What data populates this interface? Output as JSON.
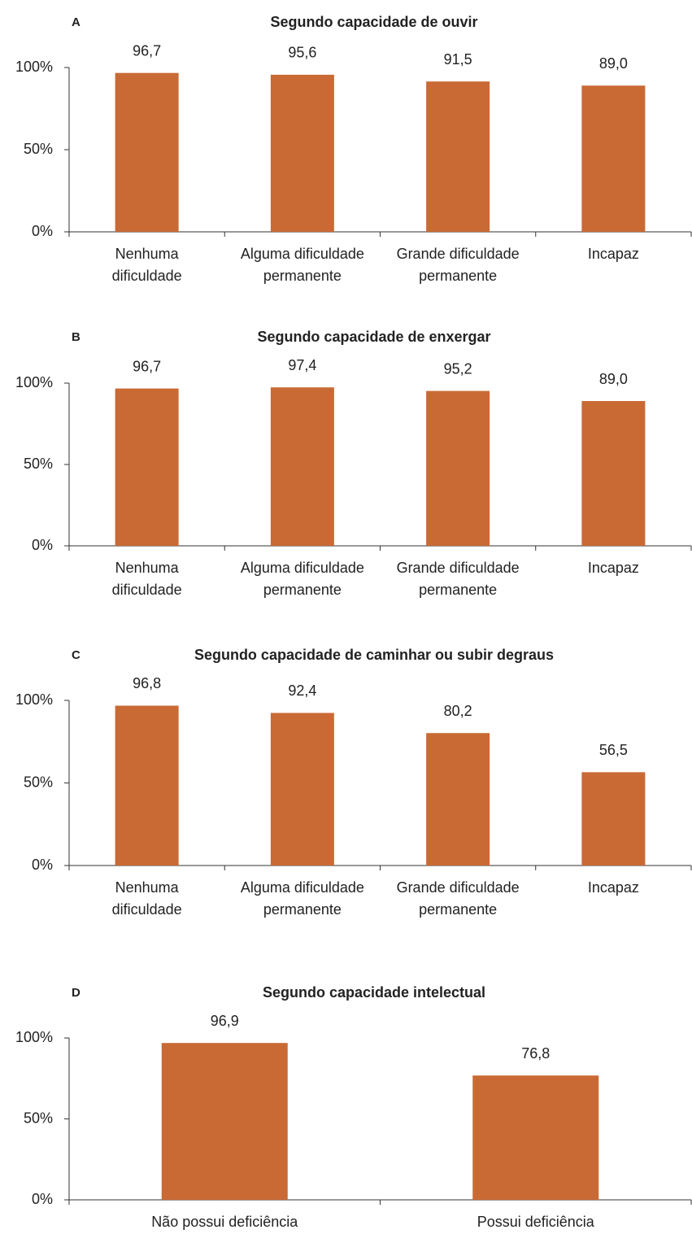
{
  "chart_data": [
    {
      "type": "bar",
      "panel": "A",
      "title": "Segundo capacidade de ouvir",
      "categories": [
        "Nenhuma\ndificuldade",
        "Alguma dificuldade\npermanente",
        "Grande dificuldade\npermanente",
        "Incapaz"
      ],
      "values": [
        96.7,
        95.6,
        91.5,
        89.0
      ],
      "value_labels": [
        "96,7",
        "95,6",
        "91,5",
        "89,0"
      ],
      "color": "#c96a35",
      "ylim": [
        0,
        100
      ],
      "yticks": [
        {
          "value": 0,
          "label": "0%"
        },
        {
          "value": 50,
          "label": "50%"
        },
        {
          "value": 100,
          "label": "100%"
        }
      ]
    },
    {
      "type": "bar",
      "panel": "B",
      "title": "Segundo capacidade de enxergar",
      "categories": [
        "Nenhuma\ndificuldade",
        "Alguma dificuldade\npermanente",
        "Grande dificuldade\npermanente",
        "Incapaz"
      ],
      "values": [
        96.7,
        97.4,
        95.2,
        89.0
      ],
      "value_labels": [
        "96,7",
        "97,4",
        "95,2",
        "89,0"
      ],
      "color": "#c96a35",
      "ylim": [
        0,
        100
      ],
      "yticks": [
        {
          "value": 0,
          "label": "0%"
        },
        {
          "value": 50,
          "label": "50%"
        },
        {
          "value": 100,
          "label": "100%"
        }
      ]
    },
    {
      "type": "bar",
      "panel": "C",
      "title": "Segundo capacidade de caminhar ou subir degraus",
      "categories": [
        "Nenhuma\ndificuldade",
        "Alguma dificuldade\npermanente",
        "Grande dificuldade\npermanente",
        "Incapaz"
      ],
      "values": [
        96.8,
        92.4,
        80.2,
        56.5
      ],
      "value_labels": [
        "96,8",
        "92,4",
        "80,2",
        "56,5"
      ],
      "color": "#c96a35",
      "ylim": [
        0,
        100
      ],
      "yticks": [
        {
          "value": 0,
          "label": "0%"
        },
        {
          "value": 50,
          "label": "50%"
        },
        {
          "value": 100,
          "label": "100%"
        }
      ]
    },
    {
      "type": "bar",
      "panel": "D",
      "title": "Segundo capacidade intelectual",
      "categories": [
        "Não possui deficiência",
        "Possui deficiência"
      ],
      "values": [
        96.9,
        76.8
      ],
      "value_labels": [
        "96,9",
        "76,8"
      ],
      "color": "#c96a35",
      "ylim": [
        0,
        100
      ],
      "yticks": [
        {
          "value": 0,
          "label": "0%"
        },
        {
          "value": 50,
          "label": "50%"
        },
        {
          "value": 100,
          "label": "100%"
        }
      ]
    }
  ]
}
